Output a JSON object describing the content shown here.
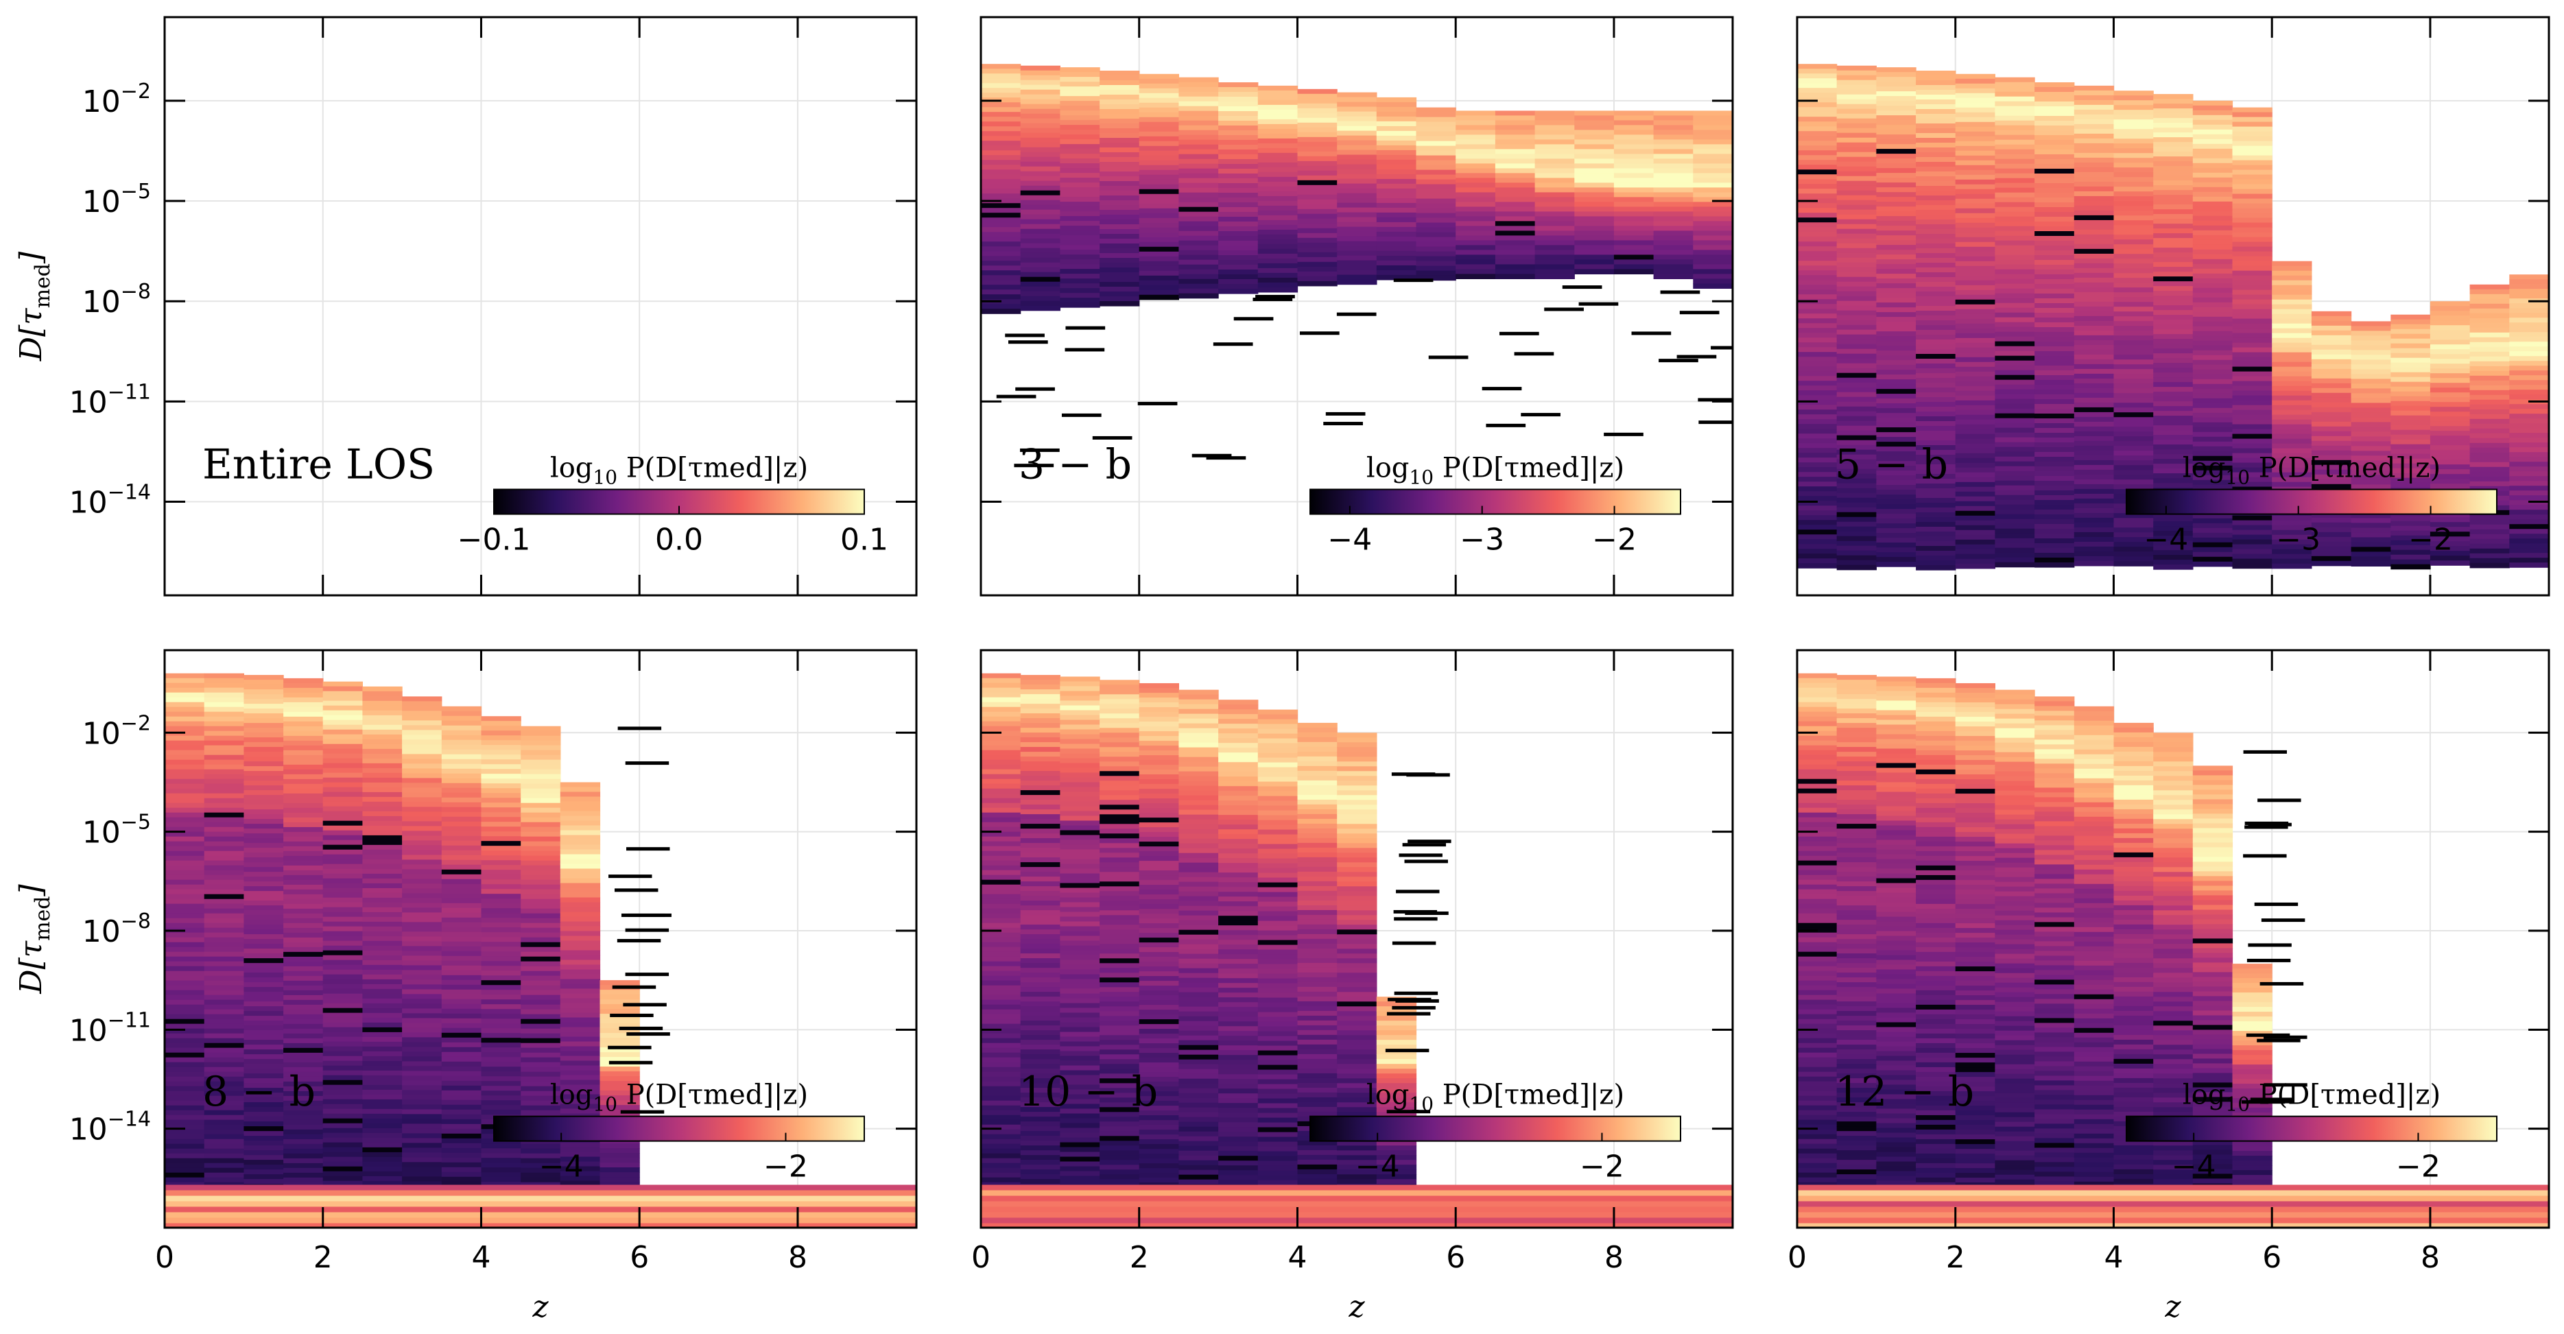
{
  "colors": {
    "cmap": [
      "#000004",
      "#2c115f",
      "#721f81",
      "#b73779",
      "#f1605d",
      "#feb078",
      "#fcfdbf"
    ]
  },
  "chart_data": [
    {
      "type": "heatmap",
      "panel_label": "Entire LOS",
      "xlabel": "",
      "ylabel": "D[τ_med]",
      "yscale": "log",
      "xlim": [
        0,
        9.5
      ],
      "ylim": [
        1e-16,
        1.0
      ],
      "x_ticks": [
        "",
        "",
        "",
        "",
        ""
      ],
      "y_ticks": [
        "10^-2",
        "10^-5",
        "10^-8",
        "10^-11",
        "10^-14"
      ],
      "colorbar": {
        "title": "log10 P(D[τ_med]|z)",
        "range": [
          -0.1,
          0.1
        ],
        "ticks": [
          "-0.1",
          "0.0",
          "0.1"
        ]
      },
      "grid": true,
      "density": "empty",
      "bands": []
    },
    {
      "type": "heatmap",
      "panel_label": "3 − b",
      "xlabel": "",
      "ylabel": "",
      "yscale": "log",
      "xlim": [
        0,
        9.5
      ],
      "ylim": [
        1e-16,
        1.0
      ],
      "x_ticks": [
        "",
        "",
        "",
        "",
        ""
      ],
      "y_ticks": [
        "",
        "",
        "",
        "",
        ""
      ],
      "colorbar": {
        "title": "log10 P(D[τ_med]|z)",
        "range": [
          -4.3,
          -1.5
        ],
        "ticks": [
          "-4",
          "-3",
          "-2"
        ]
      },
      "grid": true,
      "density": "peaked",
      "bands": [
        {
          "z": [
            0,
            0.5
          ],
          "top": -0.9,
          "peak": -1.4,
          "bottom": -8.3
        },
        {
          "z": [
            0.5,
            1
          ],
          "top": -0.95,
          "peak": -1.5,
          "bottom": -8.2
        },
        {
          "z": [
            1,
            1.5
          ],
          "top": -1.0,
          "peak": -1.6,
          "bottom": -8.1
        },
        {
          "z": [
            1.5,
            2
          ],
          "top": -1.1,
          "peak": -1.7,
          "bottom": -8.0
        },
        {
          "z": [
            2,
            2.5
          ],
          "top": -1.2,
          "peak": -1.85,
          "bottom": -7.9
        },
        {
          "z": [
            2.5,
            3
          ],
          "top": -1.3,
          "peak": -2.0,
          "bottom": -7.8
        },
        {
          "z": [
            3,
            3.5
          ],
          "top": -1.45,
          "peak": -2.2,
          "bottom": -7.7
        },
        {
          "z": [
            3.5,
            4
          ],
          "top": -1.55,
          "peak": -2.4,
          "bottom": -7.6
        },
        {
          "z": [
            4,
            4.5
          ],
          "top": -1.65,
          "peak": -2.6,
          "bottom": -7.5
        },
        {
          "z": [
            4.5,
            5
          ],
          "top": -1.75,
          "peak": -2.8,
          "bottom": -7.4
        },
        {
          "z": [
            5,
            5.5
          ],
          "top": -1.9,
          "peak": -3.0,
          "bottom": -7.3
        },
        {
          "z": [
            5.5,
            6
          ],
          "top": -2.2,
          "peak": -3.3,
          "bottom": -7.3
        },
        {
          "z": [
            6,
            6.5
          ],
          "top": -2.3,
          "peak": -3.6,
          "bottom": -7.2
        },
        {
          "z": [
            6.5,
            7
          ],
          "top": -2.3,
          "peak": -3.9,
          "bottom": -7.2
        },
        {
          "z": [
            7,
            7.5
          ],
          "top": -2.3,
          "peak": -4.2,
          "bottom": -7.2
        },
        {
          "z": [
            7.5,
            8
          ],
          "top": -2.3,
          "peak": -4.4,
          "bottom": -7.1
        },
        {
          "z": [
            8,
            8.5
          ],
          "top": -2.3,
          "peak": -4.5,
          "bottom": -7.1
        },
        {
          "z": [
            8.5,
            9
          ],
          "top": -2.3,
          "peak": -4.5,
          "bottom": -7.3
        },
        {
          "z": [
            9,
            9.5
          ],
          "top": -2.3,
          "peak": -4.5,
          "bottom": -7.6
        }
      ]
    },
    {
      "type": "heatmap",
      "panel_label": "5 − b",
      "xlabel": "",
      "ylabel": "",
      "yscale": "log",
      "xlim": [
        0,
        9.5
      ],
      "ylim": [
        1e-16,
        1.0
      ],
      "x_ticks": [
        "",
        "",
        "",
        "",
        ""
      ],
      "y_ticks": [
        "",
        "",
        "",
        "",
        ""
      ],
      "colorbar": {
        "title": "log10 P(D[τ_med]|z)",
        "range": [
          -4.3,
          -1.5
        ],
        "ticks": [
          "-4",
          "-3",
          "-2"
        ]
      },
      "grid": true,
      "density": "peaked",
      "bands": [
        {
          "z": [
            0,
            0.5
          ],
          "top": -0.9,
          "peak": -1.5,
          "bottom": -15.9
        },
        {
          "z": [
            0.5,
            1
          ],
          "top": -0.95,
          "peak": -1.6,
          "bottom": -15.9
        },
        {
          "z": [
            1,
            1.5
          ],
          "top": -1.0,
          "peak": -1.7,
          "bottom": -15.9
        },
        {
          "z": [
            1.5,
            2
          ],
          "top": -1.1,
          "peak": -1.8,
          "bottom": -15.9
        },
        {
          "z": [
            2,
            2.5
          ],
          "top": -1.2,
          "peak": -2.0,
          "bottom": -15.9
        },
        {
          "z": [
            2.5,
            3
          ],
          "top": -1.3,
          "peak": -2.1,
          "bottom": -15.9
        },
        {
          "z": [
            3,
            3.5
          ],
          "top": -1.45,
          "peak": -2.3,
          "bottom": -15.9
        },
        {
          "z": [
            3.5,
            4
          ],
          "top": -1.55,
          "peak": -2.5,
          "bottom": -15.9
        },
        {
          "z": [
            4,
            4.5
          ],
          "top": -1.7,
          "peak": -2.7,
          "bottom": -15.9
        },
        {
          "z": [
            4.5,
            5
          ],
          "top": -1.8,
          "peak": -2.9,
          "bottom": -15.9
        },
        {
          "z": [
            5,
            5.5
          ],
          "top": -2.0,
          "peak": -3.1,
          "bottom": -15.9
        },
        {
          "z": [
            5.5,
            6
          ],
          "top": -2.2,
          "peak": -3.4,
          "bottom": -15.9
        },
        {
          "z": [
            6,
            6.5
          ],
          "top": -6.8,
          "peak": -9.0,
          "bottom": -15.9
        },
        {
          "z": [
            6.5,
            7
          ],
          "top": -8.3,
          "peak": -9.6,
          "bottom": -15.9
        },
        {
          "z": [
            7,
            7.5
          ],
          "top": -8.6,
          "peak": -10.0,
          "bottom": -15.9
        },
        {
          "z": [
            7.5,
            8
          ],
          "top": -8.4,
          "peak": -10.0,
          "bottom": -15.9
        },
        {
          "z": [
            8,
            8.5
          ],
          "top": -8.0,
          "peak": -9.7,
          "bottom": -15.9
        },
        {
          "z": [
            8.5,
            9
          ],
          "top": -7.5,
          "peak": -9.6,
          "bottom": -15.9
        },
        {
          "z": [
            9,
            9.5
          ],
          "top": -7.2,
          "peak": -9.5,
          "bottom": -15.9
        }
      ]
    },
    {
      "type": "heatmap",
      "panel_label": "8 − b",
      "xlabel": "z",
      "ylabel": "D[τ_med]",
      "yscale": "log",
      "xlim": [
        0,
        9.5
      ],
      "ylim": [
        1e-17,
        1.0
      ],
      "x_ticks": [
        "0",
        "2",
        "4",
        "6",
        "8"
      ],
      "y_ticks": [
        "10^-2",
        "10^-5",
        "10^-8",
        "10^-11",
        "10^-14"
      ],
      "colorbar": {
        "title": "log10 P(D[τ_med]|z)",
        "range": [
          -4.6,
          -1.3
        ],
        "ticks": [
          "-4",
          "-2"
        ]
      },
      "grid": true,
      "density": "decay",
      "bands": [
        {
          "z": [
            0,
            0.5
          ],
          "top": -0.2,
          "peak": -1.0,
          "bottom": -15.9
        },
        {
          "z": [
            0.5,
            1
          ],
          "top": -0.2,
          "peak": -1.1,
          "bottom": -15.9
        },
        {
          "z": [
            1,
            1.5
          ],
          "top": -0.25,
          "peak": -1.2,
          "bottom": -15.9
        },
        {
          "z": [
            1.5,
            2
          ],
          "top": -0.35,
          "peak": -1.4,
          "bottom": -15.9
        },
        {
          "z": [
            2,
            2.5
          ],
          "top": -0.45,
          "peak": -1.6,
          "bottom": -15.9
        },
        {
          "z": [
            2.5,
            3
          ],
          "top": -0.6,
          "peak": -1.8,
          "bottom": -15.9
        },
        {
          "z": [
            3,
            3.5
          ],
          "top": -0.9,
          "peak": -2.5,
          "bottom": -15.9
        },
        {
          "z": [
            3.5,
            4
          ],
          "top": -1.2,
          "peak": -3.0,
          "bottom": -15.9
        },
        {
          "z": [
            4,
            4.5
          ],
          "top": -1.5,
          "peak": -3.5,
          "bottom": -15.9
        },
        {
          "z": [
            4.5,
            5
          ],
          "top": -1.8,
          "peak": -4.0,
          "bottom": -15.9
        },
        {
          "z": [
            5,
            5.5
          ],
          "top": -3.5,
          "peak": -6.0,
          "bottom": -15.9
        },
        {
          "z": [
            5.5,
            6
          ],
          "top": -9.5,
          "peak": -12.0,
          "bottom": -15.9
        }
      ]
    },
    {
      "type": "heatmap",
      "panel_label": "10 − b",
      "xlabel": "z",
      "ylabel": "",
      "yscale": "log",
      "xlim": [
        0,
        9.5
      ],
      "ylim": [
        1e-17,
        1.0
      ],
      "x_ticks": [
        "0",
        "2",
        "4",
        "6",
        "8"
      ],
      "y_ticks": [
        "",
        "",
        "",
        "",
        ""
      ],
      "colorbar": {
        "title": "log10 P(D[τ_med]|z)",
        "range": [
          -4.6,
          -1.3
        ],
        "ticks": [
          "-4",
          "-2"
        ]
      },
      "grid": true,
      "density": "decay",
      "bands": [
        {
          "z": [
            0,
            0.5
          ],
          "top": -0.2,
          "peak": -1.0,
          "bottom": -15.9
        },
        {
          "z": [
            0.5,
            1
          ],
          "top": -0.25,
          "peak": -1.1,
          "bottom": -15.9
        },
        {
          "z": [
            1,
            1.5
          ],
          "top": -0.3,
          "peak": -1.3,
          "bottom": -15.9
        },
        {
          "z": [
            1.5,
            2
          ],
          "top": -0.4,
          "peak": -1.5,
          "bottom": -15.9
        },
        {
          "z": [
            2,
            2.5
          ],
          "top": -0.5,
          "peak": -1.8,
          "bottom": -15.9
        },
        {
          "z": [
            2.5,
            3
          ],
          "top": -0.7,
          "peak": -2.3,
          "bottom": -15.9
        },
        {
          "z": [
            3,
            3.5
          ],
          "top": -1.0,
          "peak": -2.8,
          "bottom": -15.9
        },
        {
          "z": [
            3.5,
            4
          ],
          "top": -1.3,
          "peak": -3.4,
          "bottom": -15.9
        },
        {
          "z": [
            4,
            4.5
          ],
          "top": -1.7,
          "peak": -4.0,
          "bottom": -15.9
        },
        {
          "z": [
            4.5,
            5
          ],
          "top": -2.0,
          "peak": -4.6,
          "bottom": -15.9
        },
        {
          "z": [
            5,
            5.5
          ],
          "top": -10.0,
          "peak": -12.0,
          "bottom": -15.9
        }
      ]
    },
    {
      "type": "heatmap",
      "panel_label": "12 − b",
      "xlabel": "z",
      "ylabel": "",
      "yscale": "log",
      "xlim": [
        0,
        9.5
      ],
      "ylim": [
        1e-17,
        1.0
      ],
      "x_ticks": [
        "0",
        "2",
        "4",
        "6",
        "8"
      ],
      "y_ticks": [
        "",
        "",
        "",
        "",
        ""
      ],
      "colorbar": {
        "title": "log10 P(D[τ_med]|z)",
        "range": [
          -4.6,
          -1.3
        ],
        "ticks": [
          "-4",
          "-2"
        ]
      },
      "grid": true,
      "density": "decay",
      "bands": [
        {
          "z": [
            0,
            0.5
          ],
          "top": -0.2,
          "peak": -1.0,
          "bottom": -15.9
        },
        {
          "z": [
            0.5,
            1
          ],
          "top": -0.25,
          "peak": -1.1,
          "bottom": -15.9
        },
        {
          "z": [
            1,
            1.5
          ],
          "top": -0.3,
          "peak": -1.2,
          "bottom": -15.9
        },
        {
          "z": [
            1.5,
            2
          ],
          "top": -0.35,
          "peak": -1.4,
          "bottom": -15.9
        },
        {
          "z": [
            2,
            2.5
          ],
          "top": -0.5,
          "peak": -1.7,
          "bottom": -15.9
        },
        {
          "z": [
            2.5,
            3
          ],
          "top": -0.7,
          "peak": -2.1,
          "bottom": -15.9
        },
        {
          "z": [
            3,
            3.5
          ],
          "top": -0.9,
          "peak": -2.6,
          "bottom": -15.9
        },
        {
          "z": [
            3.5,
            4
          ],
          "top": -1.2,
          "peak": -3.2,
          "bottom": -15.9
        },
        {
          "z": [
            4,
            4.5
          ],
          "top": -1.7,
          "peak": -3.9,
          "bottom": -15.9
        },
        {
          "z": [
            4.5,
            5
          ],
          "top": -2.0,
          "peak": -4.5,
          "bottom": -15.9
        },
        {
          "z": [
            5,
            5.5
          ],
          "top": -3.0,
          "peak": -6.0,
          "bottom": -15.9
        },
        {
          "z": [
            5.5,
            6
          ],
          "top": -9.0,
          "peak": -11.0,
          "bottom": -15.9
        }
      ]
    }
  ]
}
